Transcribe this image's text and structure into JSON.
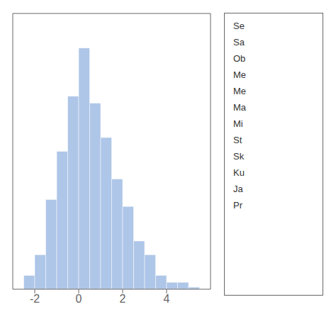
{
  "chart_data": {
    "type": "histogram",
    "bins": [
      -2.5,
      -2.0,
      -1.5,
      -1.0,
      -0.5,
      0.0,
      0.5,
      1.0,
      1.5,
      2.0,
      2.5,
      3.0,
      3.5,
      4.0,
      4.5,
      5.0,
      5.5
    ],
    "values": [
      2,
      5,
      13,
      20,
      28,
      35,
      27,
      22,
      16,
      12,
      7,
      5,
      2,
      1,
      1,
      0.3
    ],
    "color": "#aec6e8",
    "xlim": [
      -3.0,
      6.0
    ],
    "ylim": [
      0,
      40
    ],
    "xticks": [
      -2,
      0,
      2,
      4
    ],
    "tick_labels": "x",
    "grid": false,
    "annotations": [
      "Se",
      "Sa",
      "Ob",
      "Me",
      "Me",
      "Ma",
      "Mi",
      "St",
      "Sk",
      "Ku",
      "Ja",
      "Pr"
    ]
  }
}
